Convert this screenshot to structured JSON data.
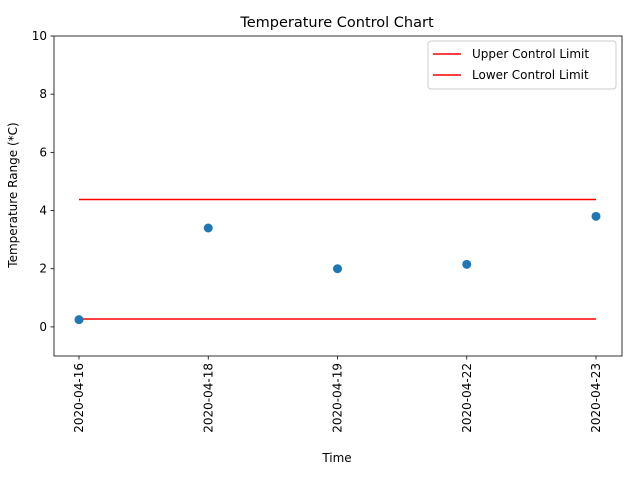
{
  "chart_data": {
    "type": "scatter",
    "title": "Temperature Control Chart",
    "xlabel": "Time",
    "ylabel": "Temperature Range (*C)",
    "categories": [
      "2020-04-16",
      "2020-04-18",
      "2020-04-19",
      "2020-04-22",
      "2020-04-23"
    ],
    "ylim": [
      -1,
      10
    ],
    "yticks": [
      0,
      2,
      4,
      6,
      8,
      10
    ],
    "grid": false,
    "series": [
      {
        "kind": "scatter",
        "values": [
          0.25,
          3.4,
          2.0,
          2.15,
          3.8
        ],
        "color": "#1f77b4"
      },
      {
        "kind": "line",
        "name": "Upper Control Limit",
        "values": [
          4.38,
          4.38,
          4.38,
          4.38,
          4.38
        ],
        "color": "#ff0000"
      },
      {
        "kind": "line",
        "name": "Lower Control Limit",
        "values": [
          0.27,
          0.27,
          0.27,
          0.27,
          0.27
        ],
        "color": "#ff0000"
      }
    ],
    "legend": {
      "location": "upper right",
      "entries": [
        "Upper Control Limit",
        "Lower Control Limit"
      ]
    }
  }
}
